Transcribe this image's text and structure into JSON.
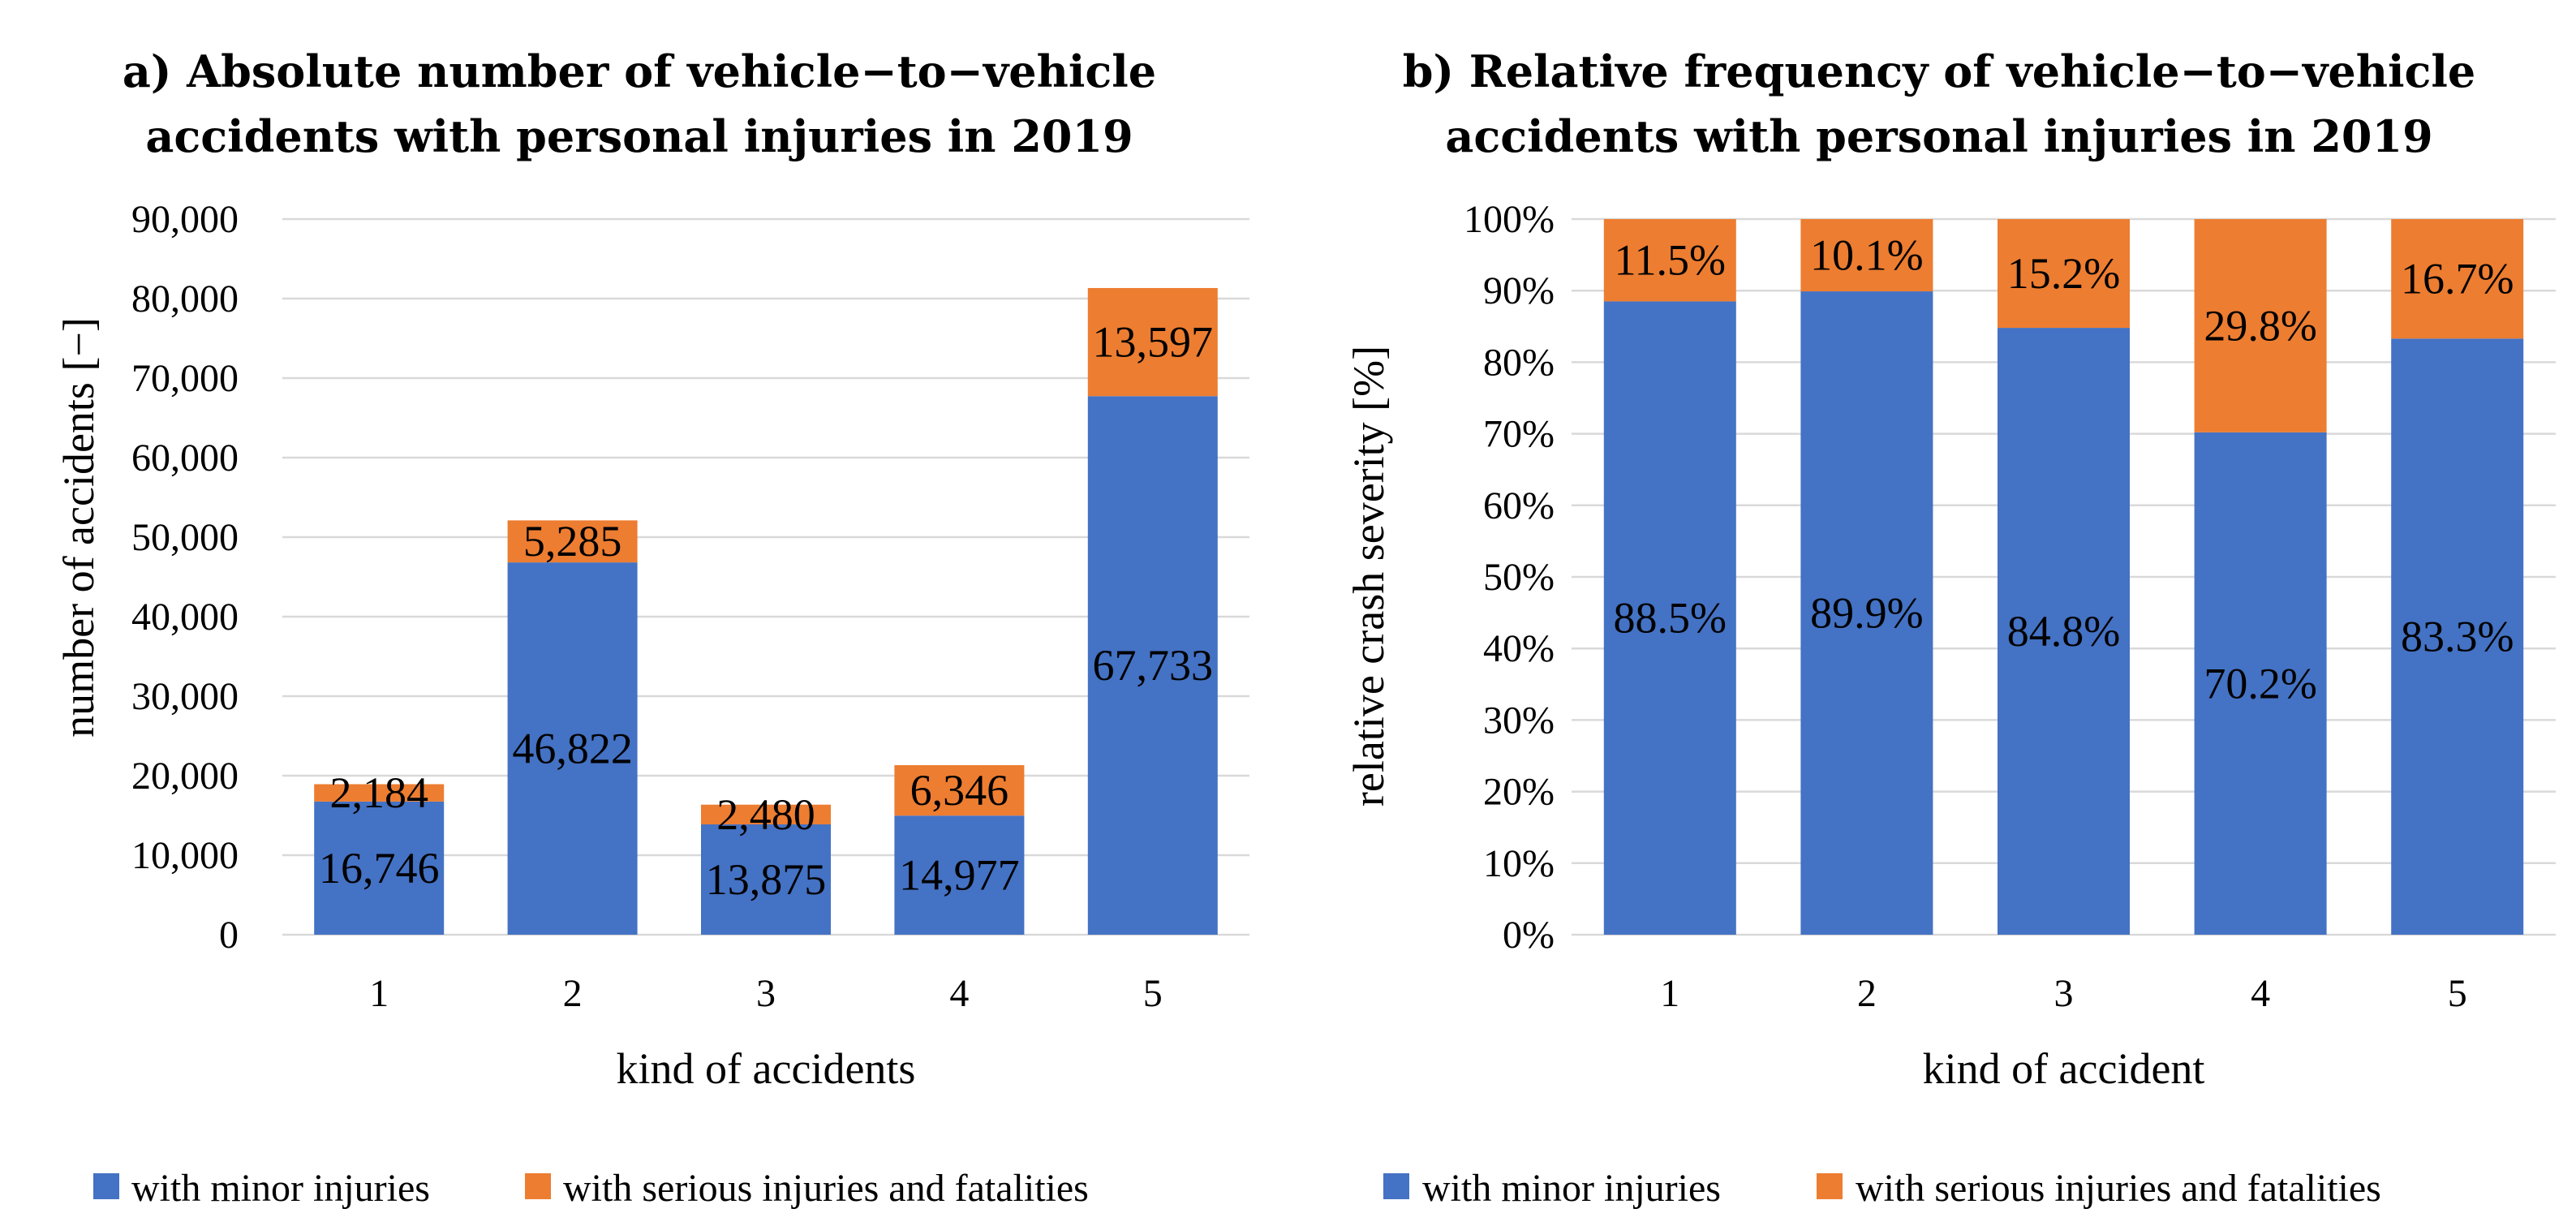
{
  "colors": {
    "minor": "#4472c4",
    "serious": "#ed7d31"
  },
  "chart_data": [
    {
      "id": "a",
      "type": "bar",
      "stacked": true,
      "title_lines": [
        "a) Absolute number of vehicle−to−vehicle",
        "accidents with personal injuries in 2019"
      ],
      "xlabel": "kind of accidents",
      "ylabel": "number of accidents [−]",
      "categories": [
        "1",
        "2",
        "3",
        "4",
        "5"
      ],
      "ylim": [
        0,
        90000
      ],
      "yticks": [
        0,
        10000,
        20000,
        30000,
        40000,
        50000,
        60000,
        70000,
        80000,
        90000
      ],
      "ytick_labels": [
        "0",
        "10,000",
        "20,000",
        "30,000",
        "40,000",
        "50,000",
        "60,000",
        "70,000",
        "80,000",
        "90,000"
      ],
      "series": [
        {
          "name": "with minor injuries",
          "key": "minor",
          "values": [
            16746,
            46822,
            13875,
            14977,
            67733
          ],
          "labels": [
            "16,746",
            "46,822",
            "13,875",
            "14,977",
            "67,733"
          ]
        },
        {
          "name": "with serious injuries and fatalities",
          "key": "serious",
          "values": [
            2184,
            5285,
            2480,
            6346,
            13597
          ],
          "labels": [
            "2,184",
            "5,285",
            "2,480",
            "6,346",
            "13,597"
          ]
        }
      ],
      "legend": [
        "with minor injuries",
        "with serious injuries and fatalities"
      ],
      "legend_position": "bottom"
    },
    {
      "id": "b",
      "type": "bar",
      "stacked": true,
      "title_lines": [
        "b) Relative frequency of vehicle−to−vehicle",
        "accidents with personal injuries in 2019"
      ],
      "xlabel": "kind of accident",
      "ylabel": "relative crash severity [%]",
      "categories": [
        "1",
        "2",
        "3",
        "4",
        "5"
      ],
      "ylim": [
        0,
        100
      ],
      "yticks": [
        0,
        10,
        20,
        30,
        40,
        50,
        60,
        70,
        80,
        90,
        100
      ],
      "ytick_labels": [
        "0%",
        "10%",
        "20%",
        "30%",
        "40%",
        "50%",
        "60%",
        "70%",
        "80%",
        "90%",
        "100%"
      ],
      "series": [
        {
          "name": "with minor injuries",
          "key": "minor",
          "values": [
            88.5,
            89.9,
            84.8,
            70.2,
            83.3
          ],
          "labels": [
            "88.5%",
            "89.9%",
            "84.8%",
            "70.2%",
            "83.3%"
          ]
        },
        {
          "name": "with serious injuries and fatalities",
          "key": "serious",
          "values": [
            11.5,
            10.1,
            15.2,
            29.8,
            16.7
          ],
          "labels": [
            "11.5%",
            "10.1%",
            "15.2%",
            "29.8%",
            "16.7%"
          ]
        }
      ],
      "legend": [
        "with minor injuries",
        "with serious injuries and fatalities"
      ],
      "legend_position": "bottom"
    }
  ]
}
